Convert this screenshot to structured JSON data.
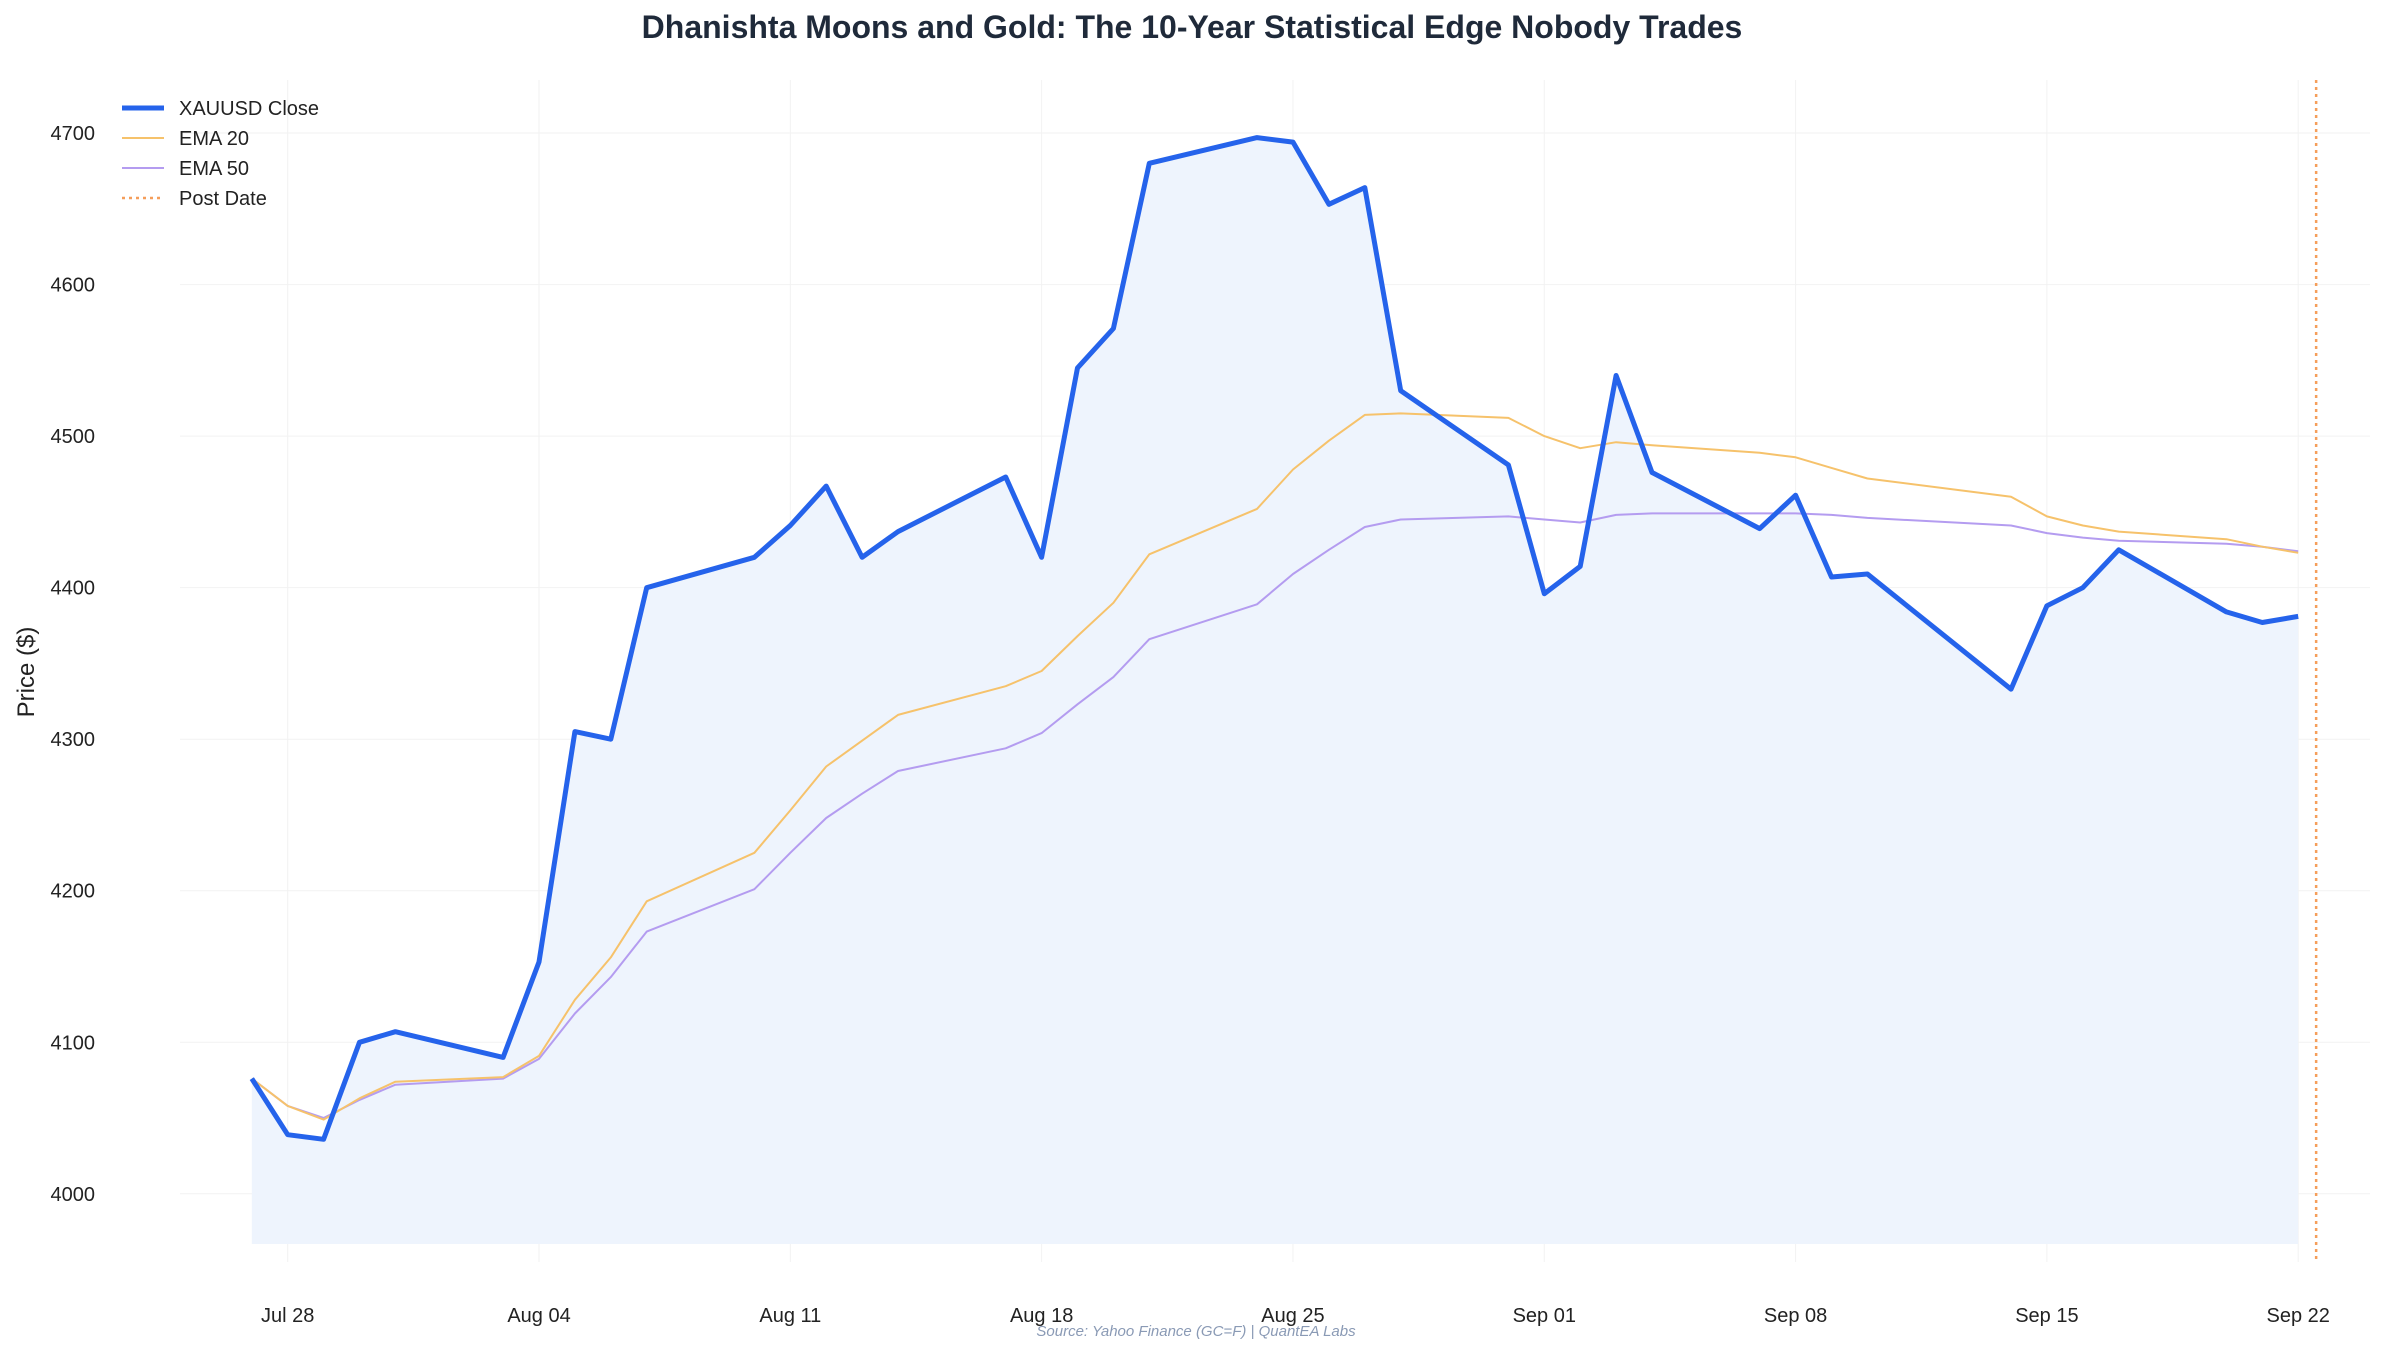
{
  "colors": {
    "close": "#2563eb",
    "ema20": "#f6c26b",
    "ema50": "#b49cf0",
    "post_date": "#f59e5a",
    "fill": "#eef4fd",
    "grid": "#f2f2f2",
    "title": "#1f2a3a",
    "source": "#8a9ab5"
  },
  "chart_data": {
    "type": "line",
    "title": "Dhanishta Moons and Gold: The 10-Year Statistical Edge Nobody Trades",
    "ylabel": "Price ($)",
    "xlabel": "",
    "source": "Source: Yahoo Finance (GC=F) | QuantEA Labs",
    "ylim": [
      3955,
      4735
    ],
    "xlim": [
      "2025-07-25",
      "2025-09-24"
    ],
    "grid": true,
    "fill_under_close": true,
    "legend_position": "top-left",
    "x_ticks": [
      {
        "date": "2025-07-28",
        "label": "Jul 28"
      },
      {
        "date": "2025-08-04",
        "label": "Aug 04"
      },
      {
        "date": "2025-08-11",
        "label": "Aug 11"
      },
      {
        "date": "2025-08-18",
        "label": "Aug 18"
      },
      {
        "date": "2025-08-25",
        "label": "Aug 25"
      },
      {
        "date": "2025-09-01",
        "label": "Sep 01"
      },
      {
        "date": "2025-09-08",
        "label": "Sep 08"
      },
      {
        "date": "2025-09-15",
        "label": "Sep 15"
      },
      {
        "date": "2025-09-22",
        "label": "Sep 22"
      }
    ],
    "y_ticks": [
      4000,
      4100,
      4200,
      4300,
      4400,
      4500,
      4600,
      4700
    ],
    "x": [
      "2025-07-27",
      "2025-07-28",
      "2025-07-29",
      "2025-07-30",
      "2025-07-31",
      "2025-08-03",
      "2025-08-04",
      "2025-08-05",
      "2025-08-06",
      "2025-08-07",
      "2025-08-10",
      "2025-08-11",
      "2025-08-12",
      "2025-08-13",
      "2025-08-14",
      "2025-08-17",
      "2025-08-18",
      "2025-08-19",
      "2025-08-20",
      "2025-08-21",
      "2025-08-24",
      "2025-08-25",
      "2025-08-26",
      "2025-08-27",
      "2025-08-28",
      "2025-08-31",
      "2025-09-01",
      "2025-09-02",
      "2025-09-03",
      "2025-09-04",
      "2025-09-07",
      "2025-09-08",
      "2025-09-09",
      "2025-09-10",
      "2025-09-14",
      "2025-09-15",
      "2025-09-16",
      "2025-09-17",
      "2025-09-20",
      "2025-09-21",
      "2025-09-22"
    ],
    "series": [
      {
        "name": "XAUUSD Close",
        "key": "close",
        "values": [
          4076,
          4039,
          4036,
          4100,
          4107,
          4090,
          4153,
          4305,
          4300,
          4400,
          4420,
          4441,
          4467,
          4420,
          4437,
          4473,
          4420,
          4545,
          4571,
          4680,
          4697,
          4694,
          4653,
          4664,
          4530,
          4481,
          4396,
          4414,
          4540,
          4476,
          4439,
          4461,
          4407,
          4409,
          4333,
          4388,
          4400,
          4425,
          4384,
          4377,
          4381
        ]
      },
      {
        "name": "EMA 20",
        "key": "ema20",
        "values": [
          4076,
          4058,
          4049,
          4063,
          4074,
          4077,
          4091,
          4128,
          4156,
          4193,
          4225,
          4253,
          4282,
          4299,
          4316,
          4335,
          4345,
          4368,
          4390,
          4422,
          4452,
          4478,
          4497,
          4514,
          4515,
          4512,
          4500,
          4492,
          4496,
          4494,
          4489,
          4486,
          4479,
          4472,
          4460,
          4447,
          4441,
          4437,
          4432,
          4427,
          4423
        ]
      },
      {
        "name": "EMA 50",
        "key": "ema50",
        "values": [
          4076,
          4058,
          4050,
          4062,
          4072,
          4076,
          4089,
          4119,
          4143,
          4173,
          4201,
          4225,
          4248,
          4264,
          4279,
          4294,
          4304,
          4323,
          4341,
          4366,
          4389,
          4409,
          4425,
          4440,
          4445,
          4447,
          4445,
          4443,
          4448,
          4449,
          4449,
          4449,
          4448,
          4446,
          4441,
          4436,
          4433,
          4431,
          4429,
          4427,
          4424
        ]
      },
      {
        "name": "Post Date",
        "key": "post_date",
        "type": "vline",
        "x": "2025-09-22T12:00"
      }
    ]
  }
}
